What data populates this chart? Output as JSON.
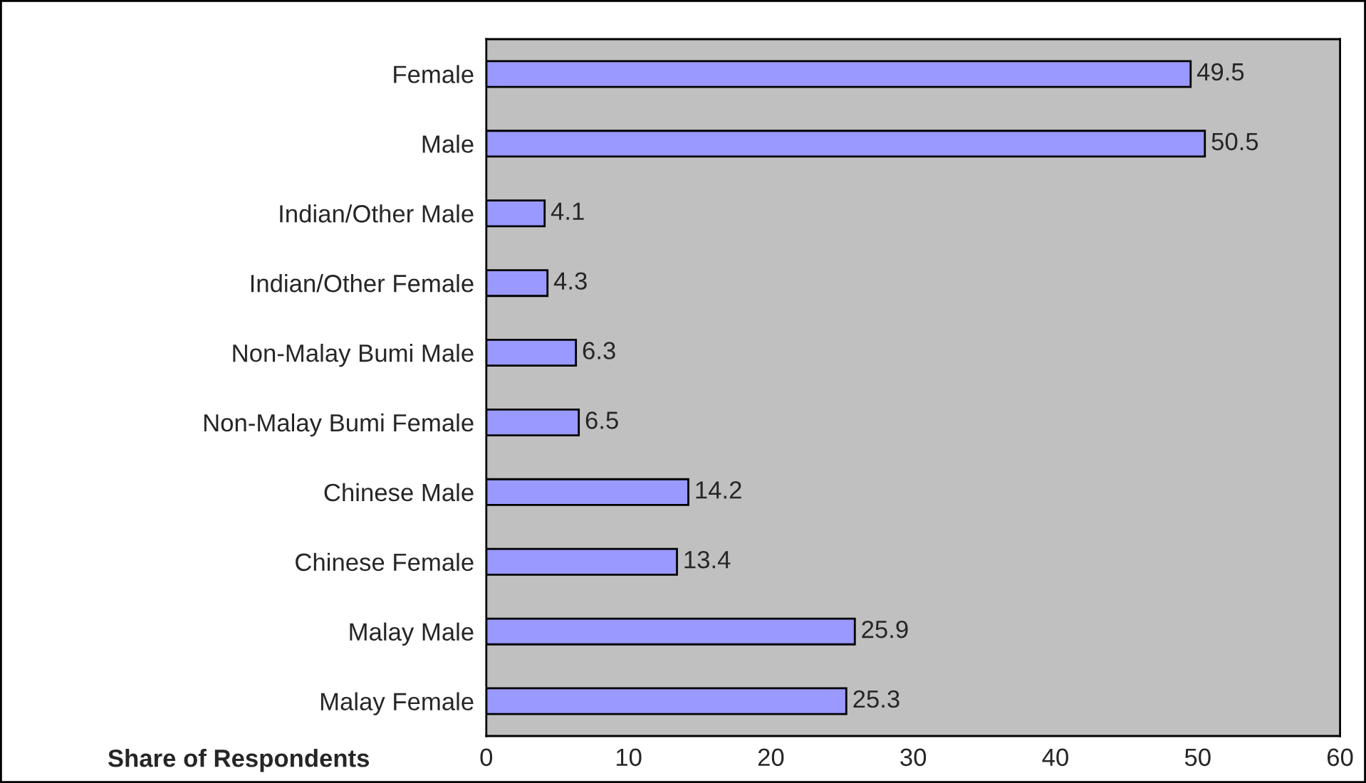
{
  "chart_data": {
    "type": "bar",
    "orientation": "horizontal",
    "xlabel": "Share of Respondents",
    "categories": [
      "Female",
      "Male",
      "Indian/Other Male",
      "Indian/Other Female",
      "Non-Malay Bumi Male",
      "Non-Malay Bumi Female",
      "Chinese Male",
      "Chinese Female",
      "Malay Male",
      "Malay Female"
    ],
    "values": [
      49.5,
      50.5,
      4.1,
      4.3,
      6.3,
      6.5,
      14.2,
      13.4,
      25.9,
      25.3
    ],
    "color": "#9999ff",
    "xlim": [
      0,
      60
    ],
    "xticks": [
      0,
      10,
      20,
      30,
      40,
      50,
      60
    ],
    "data_labels": true,
    "grid": false,
    "legend": false
  }
}
